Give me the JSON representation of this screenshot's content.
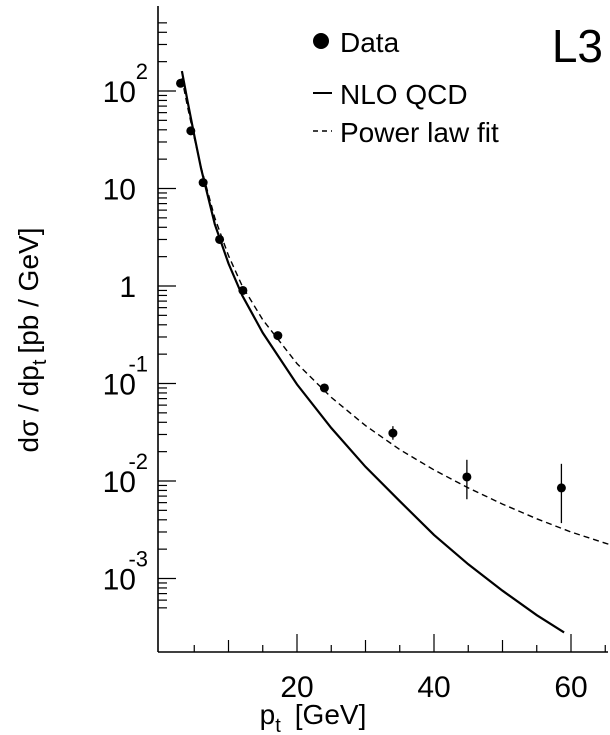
{
  "chart_data": {
    "type": "scatter",
    "experiment_tag": "L3",
    "xlabel": {
      "main": "p",
      "sub": "t",
      "unit": "[GeV]"
    },
    "ylabel": {
      "pre": "dσ / dp",
      "sub": "t",
      "unit": "[pb / GeV]"
    },
    "xlim": [
      0,
      70
    ],
    "ylim": [
      0.0005,
      500
    ],
    "yscale": "log",
    "grid": false,
    "legend_position": "top-right",
    "x_ticks": [
      {
        "value": 20,
        "label": "20"
      },
      {
        "value": 40,
        "label": "40"
      },
      {
        "value": 60,
        "label": "60"
      }
    ],
    "y_ticks": [
      {
        "value": 100,
        "base": "10",
        "exp": "2"
      },
      {
        "value": 10,
        "base": "10",
        "exp": ""
      },
      {
        "value": 1,
        "base": "1",
        "exp": ""
      },
      {
        "value": 0.1,
        "base": "10",
        "exp": "-1"
      },
      {
        "value": 0.01,
        "base": "10",
        "exp": "-2"
      },
      {
        "value": 0.001,
        "base": "10",
        "exp": "-3"
      }
    ],
    "series": [
      {
        "name": "Data",
        "kind": "points",
        "x": [
          3.0,
          4.5,
          6.3,
          8.7,
          12.1,
          17.2,
          24.0,
          34.0,
          44.8,
          58.6
        ],
        "y": [
          120,
          39,
          11.5,
          3.0,
          0.9,
          0.31,
          0.09,
          0.031,
          0.011,
          0.0085
        ],
        "yerr_low": [
          0,
          0,
          0,
          0,
          0,
          0,
          0,
          0.0045,
          0.0045,
          0.0048
        ],
        "yerr_high": [
          0,
          0,
          0,
          0,
          0,
          0,
          0,
          0.0055,
          0.0055,
          0.0065
        ]
      },
      {
        "name": "NLO QCD",
        "kind": "solid",
        "x": [
          3.2,
          4,
          5,
          6,
          8,
          10,
          12,
          15,
          20,
          25,
          30,
          35,
          40,
          45,
          50,
          55,
          59
        ],
        "y": [
          160,
          80,
          35,
          16,
          4.3,
          1.7,
          0.8,
          0.33,
          0.098,
          0.035,
          0.014,
          0.0062,
          0.0028,
          0.0014,
          0.00075,
          0.00042,
          0.00028
        ]
      },
      {
        "name": "Power law fit",
        "kind": "dashed",
        "x": [
          3.2,
          4,
          5,
          6,
          8,
          10,
          12,
          15,
          20,
          25,
          30,
          35,
          40,
          45,
          50,
          55,
          60,
          65,
          70
        ],
        "y": [
          135,
          70,
          33,
          16.5,
          5.0,
          2.05,
          1.0,
          0.45,
          0.16,
          0.072,
          0.037,
          0.021,
          0.013,
          0.0085,
          0.0058,
          0.0041,
          0.003,
          0.0023,
          0.0018
        ]
      }
    ]
  }
}
